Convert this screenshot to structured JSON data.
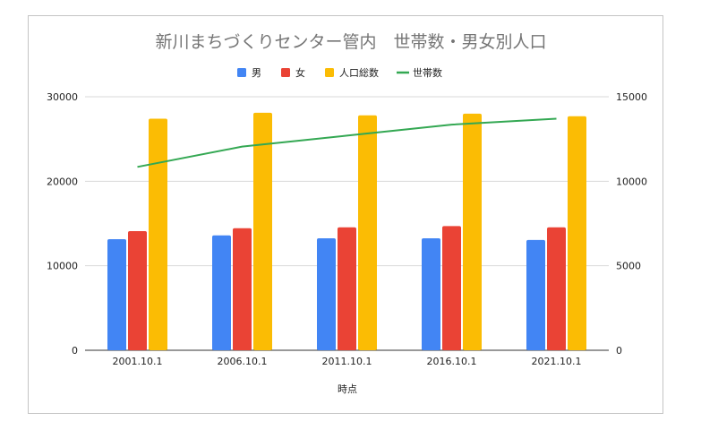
{
  "chart_data": {
    "type": "bar",
    "title": "新川まちづくりセンター管内　世帯数・男女別人口",
    "xlabel": "時点",
    "categories": [
      "2001.10.1",
      "2006.10.1",
      "2011.10.1",
      "2016.10.1",
      "2021.10.1"
    ],
    "series": [
      {
        "name": "男",
        "type": "bar",
        "axis": "left",
        "color": "#4285f4",
        "values": [
          13150,
          13600,
          13250,
          13250,
          13050
        ]
      },
      {
        "name": "女",
        "type": "bar",
        "axis": "left",
        "color": "#ea4335",
        "values": [
          14100,
          14450,
          14550,
          14700,
          14550
        ]
      },
      {
        "name": "人口総数",
        "type": "bar",
        "axis": "left",
        "color": "#fbbc04",
        "values": [
          27400,
          28100,
          27800,
          28000,
          27700
        ]
      },
      {
        "name": "世帯数",
        "type": "line",
        "axis": "right",
        "color": "#34a853",
        "values": [
          10850,
          12050,
          12700,
          13350,
          13700
        ]
      }
    ],
    "ylim_left": [
      0,
      30000
    ],
    "ylim_right": [
      0,
      15000
    ],
    "yticks_left": [
      "0",
      "10000",
      "20000",
      "30000"
    ],
    "yticks_right": [
      "0",
      "5000",
      "10000",
      "15000"
    ],
    "grid": true,
    "legend_position": "top"
  }
}
